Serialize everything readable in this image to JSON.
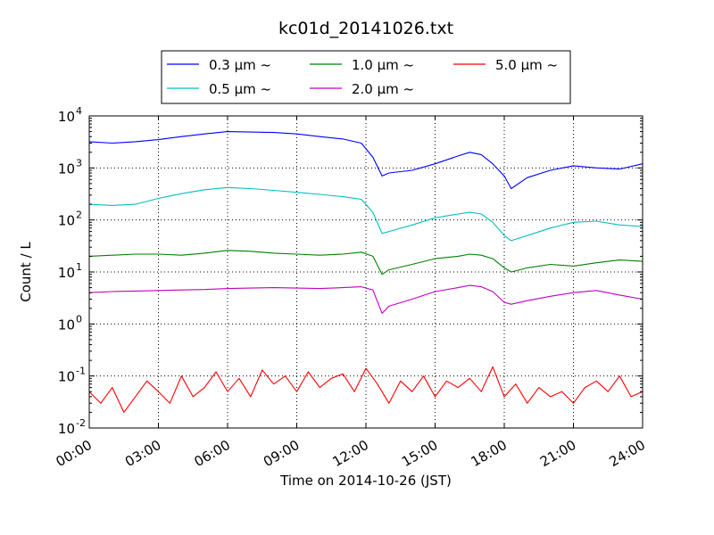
{
  "chart_data": {
    "type": "line",
    "title": "kc01d_20141026.txt",
    "xlabel": "Time on 2014-10-26 (JST)",
    "ylabel": "Count / L",
    "x_ticks": [
      "00:00",
      "03:00",
      "06:00",
      "09:00",
      "12:00",
      "15:00",
      "18:00",
      "21:00",
      "24:00"
    ],
    "x_range_hours": [
      0,
      24
    ],
    "y_scale": "log",
    "ylim": [
      0.01,
      10000
    ],
    "y_ticks": [
      {
        "base": "10",
        "exp": "-2"
      },
      {
        "base": "10",
        "exp": "-1"
      },
      {
        "base": "10",
        "exp": "0"
      },
      {
        "base": "10",
        "exp": "1"
      },
      {
        "base": "10",
        "exp": "2"
      },
      {
        "base": "10",
        "exp": "3"
      },
      {
        "base": "10",
        "exp": "4"
      }
    ],
    "grid": true,
    "legend_position": "top-center",
    "series": [
      {
        "name": "0.3 μm ~",
        "color": "#0000ff",
        "x": [
          0,
          1,
          2,
          3,
          4,
          5,
          6,
          7,
          8,
          9,
          10,
          11,
          11.8,
          12.3,
          12.7,
          13,
          14,
          15,
          16,
          16.5,
          17,
          17.5,
          18,
          18.3,
          19,
          20,
          21,
          22,
          23,
          24
        ],
        "y": [
          3200,
          3000,
          3200,
          3500,
          4000,
          4500,
          5000,
          4900,
          4800,
          4500,
          4000,
          3600,
          3000,
          1600,
          700,
          800,
          900,
          1200,
          1700,
          2000,
          1800,
          1200,
          700,
          400,
          650,
          900,
          1100,
          1000,
          950,
          1200
        ]
      },
      {
        "name": "0.5 μm ~",
        "color": "#00bfbf",
        "x": [
          0,
          1,
          2,
          3,
          4,
          5,
          6,
          7,
          8,
          9,
          10,
          11,
          11.8,
          12.3,
          12.7,
          13,
          14,
          15,
          16,
          16.5,
          17,
          17.5,
          18,
          18.3,
          19,
          20,
          21,
          22,
          23,
          24
        ],
        "y": [
          200,
          190,
          200,
          260,
          320,
          380,
          420,
          400,
          370,
          340,
          310,
          280,
          250,
          140,
          55,
          60,
          80,
          110,
          130,
          140,
          130,
          90,
          50,
          40,
          50,
          70,
          90,
          95,
          80,
          75
        ]
      },
      {
        "name": "1.0 μm ~",
        "color": "#008000",
        "x": [
          0,
          1,
          2,
          3,
          4,
          5,
          6,
          7,
          8,
          9,
          10,
          11,
          11.8,
          12.3,
          12.7,
          13,
          14,
          15,
          16,
          16.5,
          17,
          17.5,
          18,
          18.3,
          19,
          20,
          21,
          22,
          23,
          24
        ],
        "y": [
          20,
          21,
          22,
          22,
          21,
          23,
          26,
          25,
          23,
          22,
          21,
          22,
          24,
          20,
          9,
          11,
          14,
          18,
          20,
          22,
          21,
          18,
          12,
          10,
          12,
          14,
          13,
          15,
          17,
          16
        ]
      },
      {
        "name": "2.0 μm ~",
        "color": "#bf00bf",
        "x": [
          0,
          1,
          2,
          3,
          4,
          5,
          6,
          7,
          8,
          9,
          10,
          11,
          11.8,
          12.3,
          12.7,
          13,
          14,
          15,
          16,
          16.5,
          17,
          17.5,
          18,
          18.3,
          19,
          20,
          21,
          22,
          23,
          24
        ],
        "y": [
          4,
          4.2,
          4.3,
          4.4,
          4.5,
          4.6,
          4.8,
          4.9,
          5,
          4.9,
          4.8,
          5,
          5.2,
          4.5,
          1.6,
          2.2,
          3,
          4.2,
          5,
          5.5,
          5.2,
          4.2,
          2.6,
          2.4,
          2.8,
          3.4,
          4,
          4.4,
          3.6,
          3
        ]
      },
      {
        "name": "5.0 μm ~",
        "color": "#ff0000",
        "x": [
          0,
          0.5,
          1,
          1.5,
          2,
          2.5,
          3,
          3.5,
          4,
          4.5,
          5,
          5.5,
          6,
          6.5,
          7,
          7.5,
          8,
          8.5,
          9,
          9.5,
          10,
          10.5,
          11,
          11.5,
          12,
          12.5,
          13,
          13.5,
          14,
          14.5,
          15,
          15.5,
          16,
          16.5,
          17,
          17.5,
          18,
          18.5,
          19,
          19.5,
          20,
          20.5,
          21,
          21.5,
          22,
          22.5,
          23,
          23.5,
          24
        ],
        "y": [
          0.05,
          0.03,
          0.06,
          0.02,
          0.04,
          0.08,
          0.05,
          0.03,
          0.1,
          0.04,
          0.06,
          0.12,
          0.05,
          0.09,
          0.04,
          0.13,
          0.07,
          0.1,
          0.05,
          0.12,
          0.06,
          0.09,
          0.11,
          0.05,
          0.14,
          0.07,
          0.03,
          0.08,
          0.05,
          0.1,
          0.04,
          0.08,
          0.06,
          0.09,
          0.05,
          0.15,
          0.04,
          0.07,
          0.03,
          0.06,
          0.04,
          0.05,
          0.03,
          0.06,
          0.08,
          0.05,
          0.1,
          0.04,
          0.05
        ]
      }
    ]
  }
}
